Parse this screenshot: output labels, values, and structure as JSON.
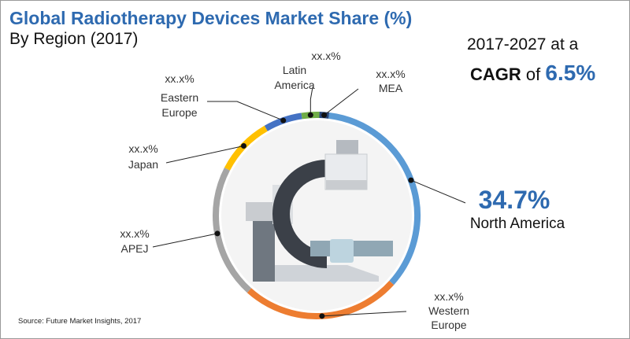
{
  "title": "Global Radiotherapy Devices Market Share (%)",
  "subtitle": "By Region (2017)",
  "cagr": {
    "line1": "2017-2027 at a",
    "word": "CAGR",
    "of": "of",
    "value": "6.5%"
  },
  "source": "Source: Future Market Insights, 2017",
  "chart_data": {
    "type": "pie",
    "style": "donut ring",
    "title": "Global Radiotherapy Devices Market Share (%)",
    "subtitle": "By Region (2017)",
    "segments": [
      {
        "name": "North America",
        "label_value": "34.7%",
        "value": 34.7,
        "color": "#5b9bd5",
        "highlight": true
      },
      {
        "name": "Western Europe",
        "label_value": "xx.x%",
        "value": 25.0,
        "color": "#ed7d31"
      },
      {
        "name": "APEJ",
        "label_value": "xx.x%",
        "value": 21.0,
        "color": "#a5a5a5"
      },
      {
        "name": "Japan",
        "label_value": "xx.x%",
        "value": 9.0,
        "color": "#ffc000"
      },
      {
        "name": "Eastern Europe",
        "label_value": "xx.x%",
        "value": 6.0,
        "color": "#4472c4"
      },
      {
        "name": "Latin America",
        "label_value": "xx.x%",
        "value": 2.8,
        "color": "#70ad47"
      },
      {
        "name": "MEA",
        "label_value": "xx.x%",
        "value": 1.5,
        "color": "#264478"
      }
    ]
  }
}
